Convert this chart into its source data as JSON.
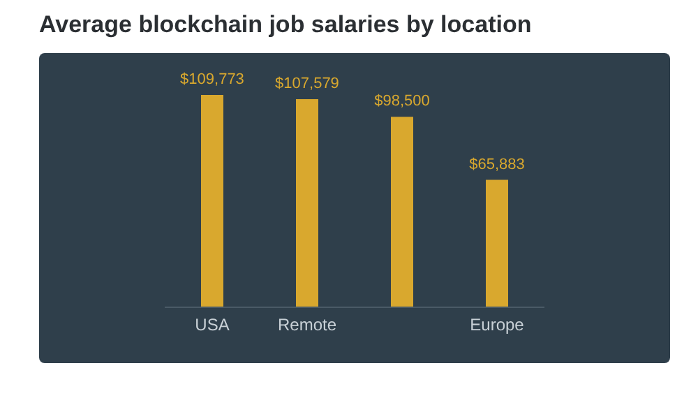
{
  "chart_data": {
    "type": "bar",
    "title": "Average blockchain job salaries by location",
    "categories": [
      "USA",
      "Remote",
      null,
      "Europe"
    ],
    "values": [
      109773,
      107579,
      98500,
      65883
    ],
    "value_labels": [
      "$109,773",
      "$107,579",
      "$98,500",
      "$65,883"
    ],
    "color": "#d9a82e"
  }
}
